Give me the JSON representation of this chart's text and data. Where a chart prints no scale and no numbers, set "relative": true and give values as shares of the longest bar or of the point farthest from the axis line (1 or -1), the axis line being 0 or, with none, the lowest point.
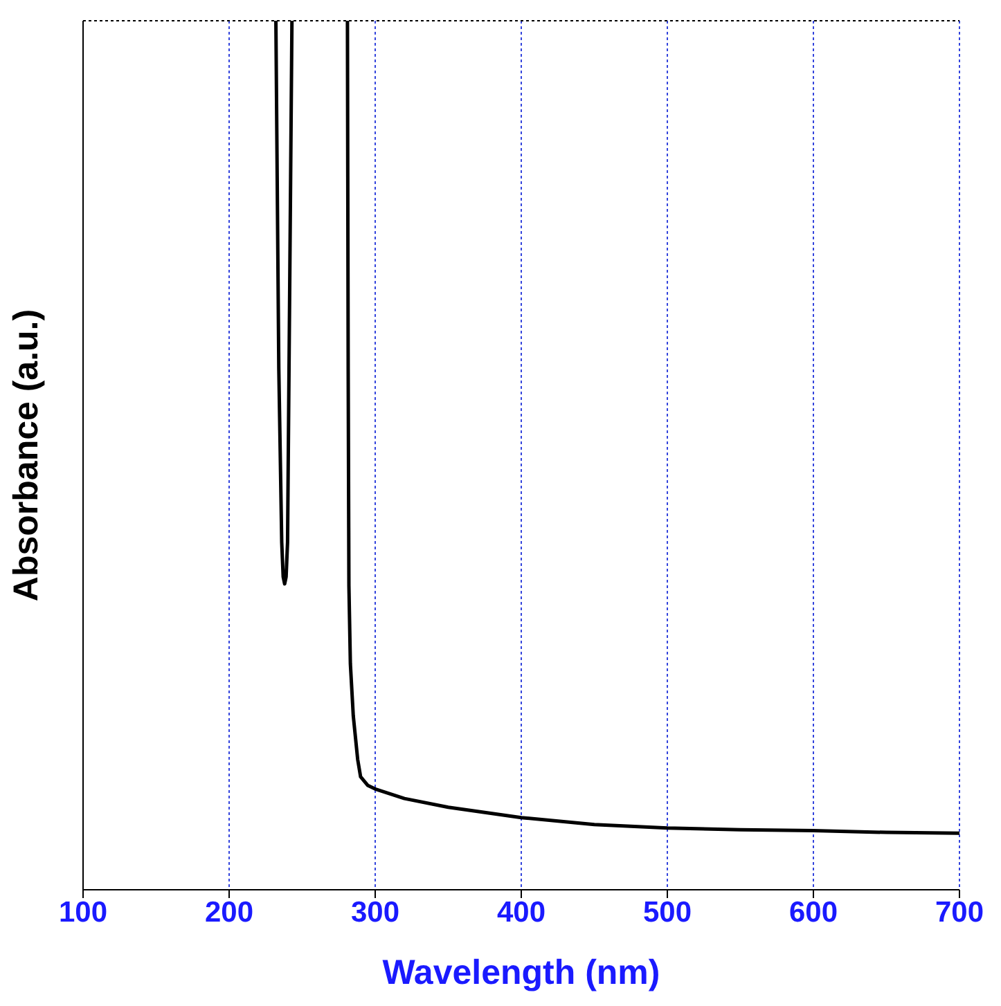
{
  "chart_data": {
    "type": "line",
    "xlabel": "Wavelength (nm)",
    "ylabel": "Absorbance (a.u.)",
    "relative": true,
    "x": [
      232,
      234,
      236,
      237,
      238,
      239,
      240,
      241,
      243,
      260,
      281,
      281.5,
      282,
      283,
      285,
      288,
      290,
      295,
      300,
      320,
      350,
      400,
      450,
      500,
      550,
      600,
      650,
      700
    ],
    "series": [
      {
        "color": "#000000",
        "values": [
          1,
          0.6,
          0.4,
          0.36,
          0.352,
          0.36,
          0.4,
          0.6,
          1,
          null,
          1,
          0.6,
          0.35,
          0.26,
          0.2,
          0.15,
          0.13,
          0.12,
          0.116,
          0.105,
          0.095,
          0.083,
          0.075,
          0.071,
          0.069,
          0.068,
          0.066,
          0.065
        ]
      }
    ],
    "xlim": [
      100,
      700
    ],
    "xticks": [
      100,
      200,
      300,
      400,
      500,
      600,
      700
    ],
    "grid": true,
    "marker": "none",
    "line_style": "solid"
  }
}
